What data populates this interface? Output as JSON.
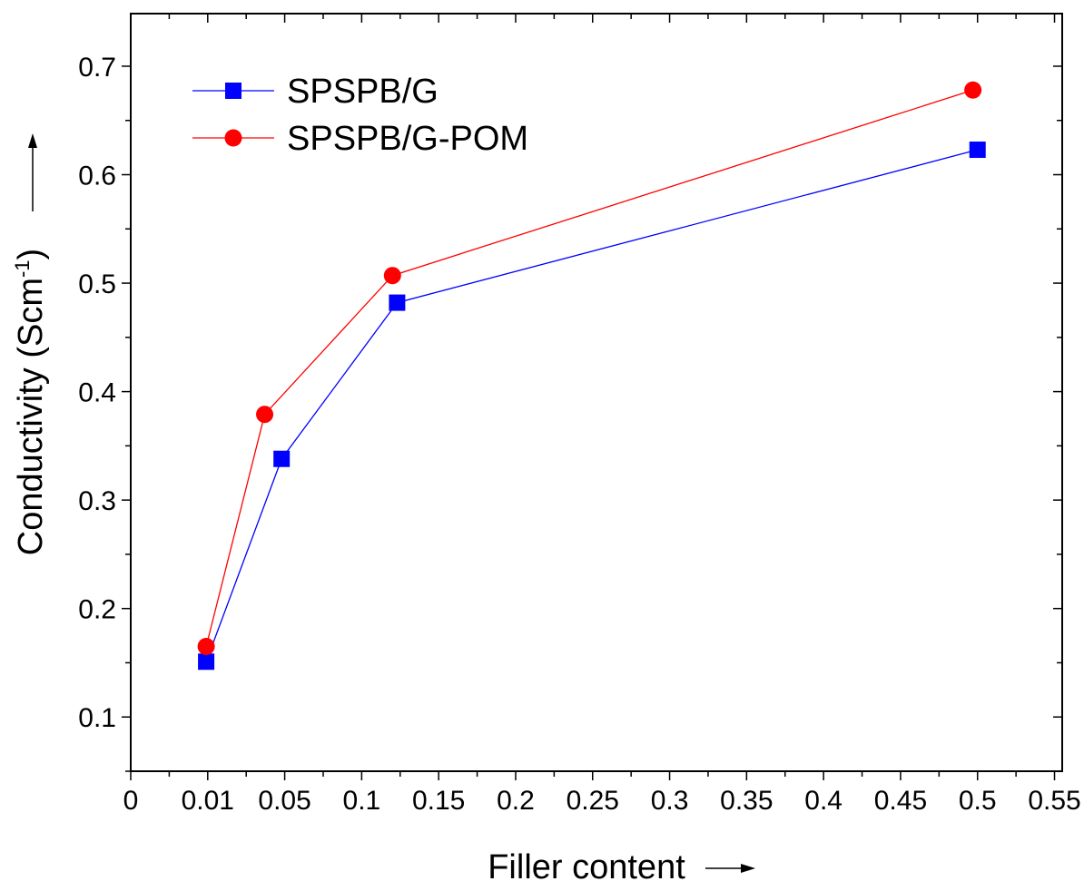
{
  "chart_data": {
    "type": "line",
    "xlabel": "Filler content",
    "ylabel": "Conductivity (Scm",
    "ylabel_superscript": "-1",
    "ylabel_close": ")",
    "xlim": [
      0,
      0.55
    ],
    "ylim": [
      0.05,
      0.7
    ],
    "x_ticks": [
      {
        "value": 0,
        "label": "0"
      },
      {
        "value": 0.05,
        "label": "0.01"
      },
      {
        "value": 0.1,
        "label": "0.05"
      },
      {
        "value": 0.15,
        "label": "0.1"
      },
      {
        "value": 0.2,
        "label": "0.15"
      },
      {
        "value": 0.25,
        "label": "0.2"
      },
      {
        "value": 0.3,
        "label": "0.25"
      },
      {
        "value": 0.35,
        "label": "0.3"
      },
      {
        "value": 0.4,
        "label": "0.35"
      },
      {
        "value": 0.45,
        "label": "0.4"
      },
      {
        "value": 0.5,
        "label": "0.45"
      },
      {
        "value": 0.55,
        "label": "0.5"
      },
      {
        "value": 0.6,
        "label": "0.55"
      }
    ],
    "y_ticks": [
      0.1,
      0.2,
      0.3,
      0.4,
      0.5,
      0.6,
      0.7
    ],
    "series": [
      {
        "name": "SPSPB/G",
        "color": "#0000ff",
        "marker": "square",
        "x": [
          0.049,
          0.098,
          0.173,
          0.55
        ],
        "y": [
          0.151,
          0.338,
          0.482,
          0.623
        ]
      },
      {
        "name": "SPSPB/G-POM",
        "color": "#ff0000",
        "marker": "circle",
        "x": [
          0.049,
          0.087,
          0.17,
          0.547
        ],
        "y": [
          0.165,
          0.379,
          0.507,
          0.678
        ]
      }
    ],
    "legend_position": "top-left",
    "grid": false
  }
}
